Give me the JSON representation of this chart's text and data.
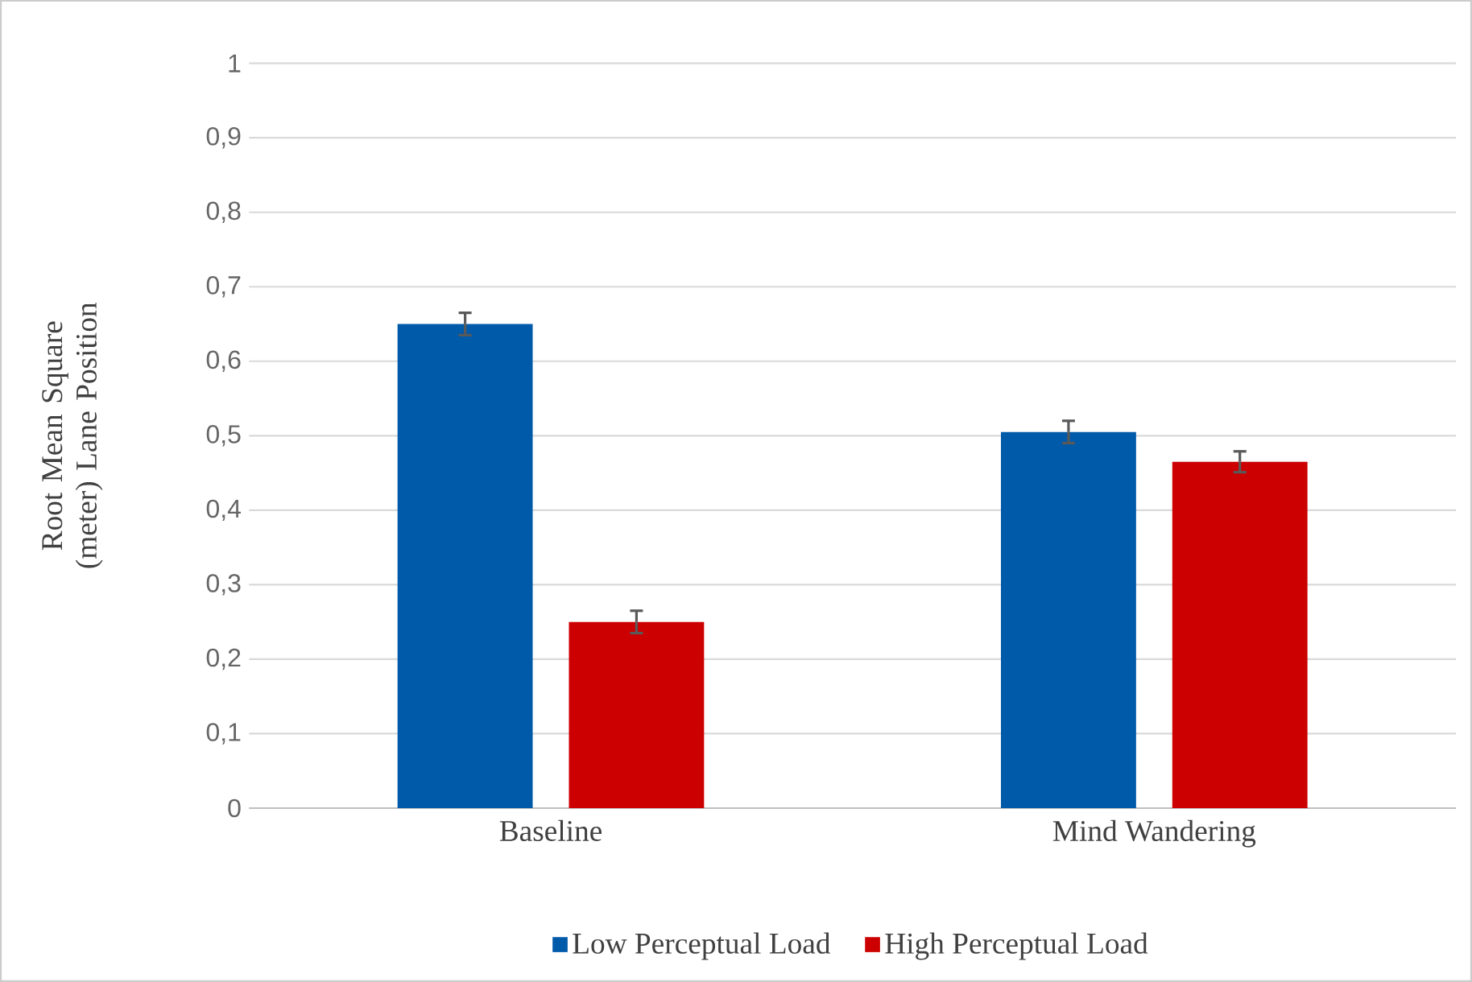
{
  "chart_data": {
    "type": "bar",
    "ylabel": "Root Mean Square (meter) Lane Position",
    "categories": [
      "Baseline",
      "Mind Wandering"
    ],
    "series": [
      {
        "name": "Low Perceptual Load",
        "color": "#005aaa",
        "values": [
          0.65,
          0.505
        ],
        "errors": [
          0.015,
          0.015
        ]
      },
      {
        "name": "High Perceptual Load",
        "color": "#cc0000",
        "values": [
          0.25,
          0.465
        ],
        "errors": [
          0.015,
          0.014
        ]
      }
    ],
    "ylim": [
      0,
      1
    ],
    "yticks": [
      {
        "value": 0,
        "label": "0"
      },
      {
        "value": 0.1,
        "label": "0,1"
      },
      {
        "value": 0.2,
        "label": "0,2"
      },
      {
        "value": 0.3,
        "label": "0,3"
      },
      {
        "value": 0.4,
        "label": "0,4"
      },
      {
        "value": 0.5,
        "label": "0,5"
      },
      {
        "value": 0.6,
        "label": "0,6"
      },
      {
        "value": 0.7,
        "label": "0,7"
      },
      {
        "value": 0.8,
        "label": "0,8"
      },
      {
        "value": 0.9,
        "label": "0,9"
      },
      {
        "value": 1,
        "label": "1"
      }
    ],
    "grid": "y",
    "legend": "bottom"
  }
}
